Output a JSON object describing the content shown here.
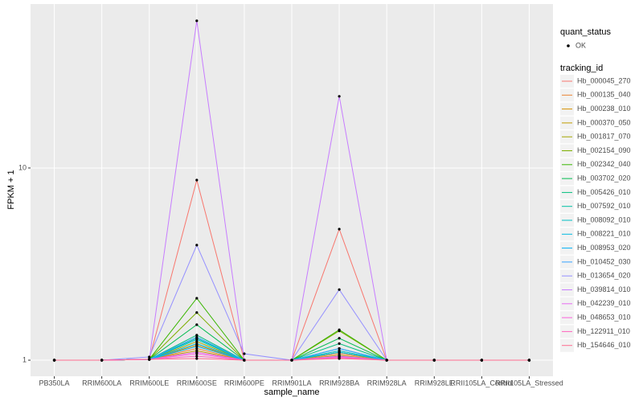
{
  "chart_data": {
    "type": "line",
    "log_scale": true,
    "grid": true,
    "x_label": "sample_name",
    "y_label": "FPKM + 1",
    "categories": [
      "PB350LA",
      "RRIM600LA",
      "RRIM600LE",
      "RRIM600SE",
      "RRIM600PE",
      "RRIM901LA",
      "RRIM928BA",
      "RRIM928LA",
      "RRIM928LE",
      "RRII105LA_Control",
      "RRII105LA_Stressed"
    ],
    "ylim": [
      0.825,
      71.3
    ],
    "yticks": [
      1,
      10
    ],
    "point_legend_title": "quant_status",
    "point_legend_label": "OK",
    "point_color": "#000000",
    "legend_title": "tracking_id",
    "legend_position": "right",
    "series": [
      {
        "name": "Hb_000045_270",
        "color": "#F8766D",
        "values": [
          1,
          1,
          1.01,
          8.65,
          1,
          1,
          4.81,
          1,
          1,
          1,
          1
        ]
      },
      {
        "name": "Hb_000135_040",
        "color": "#EA8331",
        "values": [
          1,
          1,
          1.01,
          1.15,
          1,
          1,
          1.08,
          1,
          1,
          1,
          1
        ]
      },
      {
        "name": "Hb_000238_010",
        "color": "#D89000",
        "values": [
          1,
          1,
          1.01,
          1.2,
          1,
          1,
          1.1,
          1,
          1,
          1,
          1
        ]
      },
      {
        "name": "Hb_000370_050",
        "color": "#C09B00",
        "values": [
          1,
          1,
          1.01,
          1.12,
          1,
          1,
          1.06,
          1,
          1,
          1,
          1
        ]
      },
      {
        "name": "Hb_001817_070",
        "color": "#A3A500",
        "values": [
          1,
          1,
          1.01,
          1.25,
          1,
          1,
          1.1,
          1,
          1,
          1,
          1
        ]
      },
      {
        "name": "Hb_002154_090",
        "color": "#7CAE00",
        "values": [
          1,
          1,
          1.01,
          1.77,
          1,
          1,
          1.42,
          1,
          1,
          1,
          1
        ]
      },
      {
        "name": "Hb_002342_040",
        "color": "#39B600",
        "values": [
          1,
          1,
          1.01,
          2.1,
          1,
          1,
          1.44,
          1,
          1,
          1,
          1
        ]
      },
      {
        "name": "Hb_003702_020",
        "color": "#00BB4E",
        "values": [
          1,
          1,
          1.01,
          1.53,
          1,
          1,
          1.3,
          1,
          1,
          1,
          1
        ]
      },
      {
        "name": "Hb_005426_010",
        "color": "#00BF7D",
        "values": [
          1,
          1,
          1.01,
          1.35,
          1,
          1,
          1.22,
          1,
          1,
          1,
          1
        ]
      },
      {
        "name": "Hb_007592_010",
        "color": "#00C1A3",
        "values": [
          1,
          1,
          1.01,
          1.3,
          1,
          1,
          1.15,
          1,
          1,
          1,
          1
        ]
      },
      {
        "name": "Hb_008092_010",
        "color": "#00BFC4",
        "values": [
          1,
          1,
          1.01,
          1.28,
          1,
          1,
          1.12,
          1,
          1,
          1,
          1
        ]
      },
      {
        "name": "Hb_008221_010",
        "color": "#00BAE0",
        "values": [
          1,
          1,
          1.01,
          1.22,
          1,
          1,
          1.1,
          1,
          1,
          1,
          1
        ]
      },
      {
        "name": "Hb_008953_020",
        "color": "#00B0F6",
        "values": [
          1,
          1,
          1.01,
          1.18,
          1,
          1,
          1.05,
          1,
          1,
          1,
          1
        ]
      },
      {
        "name": "Hb_010452_030",
        "color": "#35A2FF",
        "values": [
          1,
          1,
          1.01,
          1.32,
          1,
          1,
          1.15,
          1,
          1,
          1,
          1
        ]
      },
      {
        "name": "Hb_013654_020",
        "color": "#9590FF",
        "values": [
          1,
          1,
          1.04,
          3.97,
          1.08,
          1,
          2.33,
          1,
          1,
          1,
          1
        ]
      },
      {
        "name": "Hb_039814_010",
        "color": "#C77CFF",
        "values": [
          1,
          1,
          1.01,
          58.3,
          1,
          1,
          23.6,
          1,
          1,
          1,
          1
        ]
      },
      {
        "name": "Hb_042239_010",
        "color": "#E76BF3",
        "values": [
          1,
          1,
          1.01,
          1.1,
          1,
          1,
          1.05,
          1,
          1,
          1,
          1
        ]
      },
      {
        "name": "Hb_048653_010",
        "color": "#FA62DB",
        "values": [
          1,
          1,
          1.01,
          1.08,
          1,
          1,
          1.04,
          1,
          1,
          1,
          1
        ]
      },
      {
        "name": "Hb_122911_010",
        "color": "#FF62BC",
        "values": [
          1,
          1,
          1.01,
          1.05,
          1,
          1,
          1.03,
          1,
          1,
          1,
          1
        ]
      },
      {
        "name": "Hb_154646_010",
        "color": "#FF6C91",
        "values": [
          1,
          1,
          1.01,
          1.02,
          1,
          1,
          1.02,
          1,
          1,
          1,
          1
        ]
      }
    ]
  }
}
